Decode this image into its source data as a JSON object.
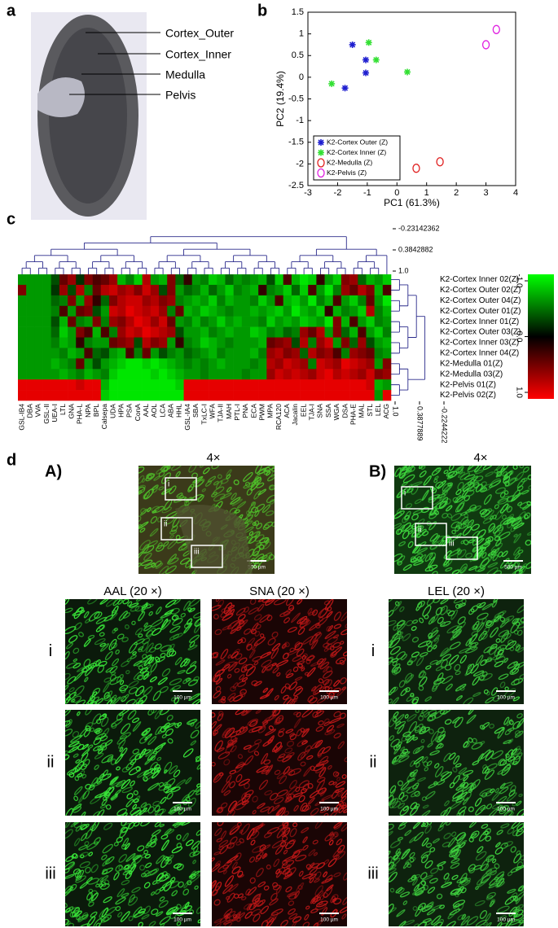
{
  "panel_labels": [
    "a",
    "b",
    "c",
    "d"
  ],
  "anatomy": {
    "labels": [
      "Cortex_Outer",
      "Cortex_Inner",
      "Medulla",
      "Pelvis"
    ]
  },
  "chart_data": {
    "type": "scatter",
    "xlabel": "PC1 (61.3%)",
    "ylabel": "PC2 (19.4%)",
    "xlim": [
      -3,
      4
    ],
    "xticks": [
      -3,
      -2,
      -1,
      0,
      1,
      2,
      3,
      4
    ],
    "ylim": [
      -2.5,
      1.5
    ],
    "yticks": [
      -2.5,
      -2,
      -1.5,
      -1,
      -0.5,
      0,
      0.5,
      1,
      1.5
    ],
    "legend": "lower left",
    "series": [
      {
        "name": "K2-Cortex Outer (Z)",
        "color": "#1f1fd0",
        "marker": "star",
        "x": [
          -1.5,
          -1.05,
          -1.05,
          -1.75
        ],
        "values": [
          0.75,
          0.4,
          0.1,
          -0.25
        ]
      },
      {
        "name": "K2-Cortex Inner (Z)",
        "color": "#33e033",
        "marker": "star",
        "x": [
          -0.95,
          -0.7,
          -2.2,
          0.35
        ],
        "values": [
          0.8,
          0.4,
          -0.15,
          0.12
        ]
      },
      {
        "name": "K2-Medulla (Z)",
        "color": "#e02020",
        "marker": "circle",
        "x": [
          0.65,
          1.45
        ],
        "values": [
          -2.1,
          -1.95
        ]
      },
      {
        "name": "K2-Pelvis (Z)",
        "color": "#e020e0",
        "marker": "circle",
        "x": [
          3.0,
          3.35
        ],
        "values": [
          0.75,
          1.1
        ]
      }
    ]
  },
  "heatmap": {
    "columns": [
      "GSL-IB4",
      "DBA",
      "VVA",
      "GSL-II",
      "UEA-I",
      "LTL",
      "GNA",
      "PHA-L",
      "NPA",
      "BPL",
      "Calsepa",
      "UDA",
      "HPA",
      "PSA",
      "ConA",
      "AAL",
      "AOL",
      "LCA",
      "ABA",
      "HHL",
      "GSL-IA4",
      "SBA",
      "TxLC-I",
      "WFA",
      "TJA-II",
      "MAH",
      "PTL-I",
      "PNA",
      "ECA",
      "PWM",
      "MPA",
      "RCA120",
      "ACA",
      "Jacalin",
      "EEL",
      "TJA-I",
      "SNA",
      "SSA",
      "WGA",
      "DSA",
      "PHA-E",
      "MAL",
      "STL",
      "LEL",
      "ACG"
    ],
    "rows": [
      "K2-Cortex Inner 02(Z)",
      "K2-Cortex Outer 02(Z)",
      "K2-Cortex Outer 04(Z)",
      "K2-Cortex Outer 01(Z)",
      "K2-Cortex Inner 01(Z)",
      "K2-Cortex Outer 03(Z)",
      "K2-Cortex Inner 03(Z)",
      "K2-Cortex Inner 04(Z)",
      "K2-Medulla 01(Z)",
      "K2-Medulla 03(Z)",
      "K2-Pelvis 01(Z)",
      "K2-Pelvis 02(Z)"
    ],
    "values": [
      [
        -0.6,
        -0.6,
        -0.6,
        -0.6,
        -0.3,
        0.4,
        0.6,
        -0.2,
        0.5,
        0.3,
        0.4,
        0.6,
        -0.7,
        -0.5,
        -0.8,
        0.7,
        -0.6,
        -0.7,
        0.5,
        -0.4,
        0.2,
        -0.6,
        -0.5,
        -0.8,
        -0.7,
        -0.4,
        -0.6,
        -0.5,
        -0.6,
        -0.7,
        -0.3,
        -0.8,
        0.3,
        -0.7,
        -0.9,
        -0.8,
        0.2,
        -0.6,
        -0.8,
        0.5,
        0.6,
        -0.4,
        -0.7,
        -0.6,
        -0.8
      ],
      [
        0.5,
        -0.6,
        -0.6,
        -0.6,
        -0.2,
        0.6,
        -0.3,
        0.7,
        -0.5,
        0.4,
        0.7,
        0.8,
        0.6,
        0.7,
        0.5,
        0.8,
        0.6,
        -0.3,
        0.5,
        -0.6,
        -0.4,
        -0.5,
        -0.7,
        -0.4,
        -0.6,
        -0.8,
        -0.5,
        -0.6,
        -0.7,
        0.2,
        -0.5,
        -0.6,
        -0.8,
        -0.4,
        -0.8,
        0.3,
        -0.6,
        -0.9,
        -0.5,
        0.6,
        0.4,
        0.7,
        0.5,
        -0.7,
        0.3
      ],
      [
        -0.6,
        -0.6,
        -0.6,
        -0.6,
        -0.4,
        -0.5,
        0.5,
        -0.6,
        0.6,
        0.2,
        -0.4,
        0.5,
        0.7,
        0.8,
        0.8,
        0.6,
        0.7,
        0.5,
        0.6,
        -0.5,
        -0.6,
        -0.7,
        -0.6,
        -0.8,
        -0.5,
        -0.7,
        -0.6,
        -0.6,
        -0.5,
        -0.8,
        -0.6,
        0.3,
        -0.7,
        -0.8,
        -0.6,
        -0.9,
        -0.5,
        -0.7,
        0.3,
        -0.6,
        -0.8,
        -0.5,
        0.4,
        -0.6,
        -0.9
      ],
      [
        -0.6,
        -0.6,
        -0.6,
        -0.6,
        -0.5,
        0.3,
        -0.6,
        0.4,
        0.5,
        -0.3,
        -0.6,
        0.8,
        0.7,
        0.9,
        0.8,
        0.7,
        0.8,
        0.6,
        -0.5,
        0.4,
        -0.7,
        -0.6,
        -0.8,
        -0.7,
        -0.6,
        -0.5,
        -0.6,
        -0.6,
        -0.7,
        -0.6,
        -0.7,
        -0.8,
        -0.6,
        -0.9,
        -0.7,
        -0.6,
        -0.8,
        0.2,
        -0.7,
        -0.5,
        -0.6,
        -0.8,
        0.7,
        -0.5,
        -0.7
      ],
      [
        -0.6,
        -0.6,
        -0.6,
        -0.6,
        -0.3,
        -0.7,
        0.4,
        -0.5,
        -0.6,
        0.5,
        -0.5,
        0.6,
        0.5,
        0.7,
        0.9,
        0.8,
        0.6,
        0.8,
        0.4,
        -0.6,
        -0.5,
        -0.7,
        -0.5,
        -0.6,
        -0.8,
        -0.6,
        -0.7,
        -0.6,
        -0.6,
        -0.5,
        -0.8,
        -0.6,
        -0.7,
        -0.6,
        -0.8,
        -0.7,
        -0.6,
        -0.9,
        0.5,
        -0.7,
        0.3,
        -0.6,
        -0.8,
        -0.5,
        -0.6
      ],
      [
        -0.6,
        -0.6,
        -0.6,
        -0.6,
        -0.4,
        -0.8,
        -0.6,
        0.5,
        0.3,
        -0.7,
        0.3,
        -0.5,
        0.6,
        0.8,
        0.7,
        0.9,
        0.8,
        0.7,
        0.6,
        -0.3,
        -0.6,
        -0.6,
        -0.7,
        -0.5,
        -0.6,
        -0.7,
        -0.6,
        -0.6,
        -0.8,
        -0.7,
        -0.5,
        -0.6,
        -0.4,
        -0.5,
        0.6,
        0.4,
        0.7,
        -0.6,
        0.5,
        -0.4,
        -0.7,
        0.3,
        -0.6,
        -0.8,
        -0.5
      ],
      [
        -0.6,
        -0.6,
        -0.6,
        -0.6,
        -0.5,
        -0.7,
        -0.6,
        0.2,
        -0.5,
        -0.6,
        -0.6,
        0.4,
        0.5,
        0.6,
        -0.3,
        0.7,
        0.5,
        0.6,
        -0.6,
        0.2,
        -0.5,
        -0.6,
        -0.8,
        -0.7,
        -0.6,
        -0.5,
        -0.6,
        -0.6,
        -0.6,
        -0.7,
        0.4,
        0.5,
        0.6,
        -0.3,
        0.7,
        -0.5,
        0.6,
        0.8,
        -0.6,
        0.5,
        -0.4,
        0.6,
        -0.3,
        -0.6,
        -0.7
      ],
      [
        -0.6,
        -0.6,
        -0.6,
        -0.6,
        -0.6,
        -0.5,
        -0.7,
        -0.6,
        0.3,
        -0.4,
        -0.3,
        -0.6,
        -0.7,
        0.3,
        -0.5,
        0.4,
        -0.6,
        -0.3,
        -0.5,
        -0.6,
        -0.4,
        -0.5,
        -0.6,
        -0.7,
        -0.5,
        -0.6,
        -0.6,
        -0.6,
        -0.7,
        -0.5,
        0.6,
        0.7,
        0.5,
        0.6,
        -0.4,
        0.7,
        0.5,
        0.6,
        0.3,
        -0.5,
        0.6,
        0.5,
        0.4,
        -0.5,
        -0.6
      ],
      [
        -0.6,
        -0.6,
        -0.6,
        -0.6,
        -0.7,
        -0.6,
        -0.5,
        0.4,
        -0.6,
        -0.3,
        -0.6,
        -0.7,
        -0.8,
        -0.9,
        -0.9,
        -0.8,
        -0.9,
        -0.8,
        -0.7,
        -0.6,
        -0.5,
        -0.6,
        -0.5,
        -0.6,
        -0.7,
        -0.6,
        -0.6,
        -0.6,
        -0.5,
        -0.6,
        0.7,
        0.6,
        0.8,
        0.7,
        0.6,
        -0.5,
        0.8,
        0.7,
        0.6,
        0.9,
        0.8,
        0.7,
        0.6,
        -0.6,
        0.5
      ],
      [
        -0.6,
        -0.6,
        -0.6,
        -0.6,
        -0.6,
        -0.7,
        -0.6,
        -0.5,
        -0.7,
        -0.6,
        -0.5,
        -0.8,
        -0.9,
        -0.9,
        -0.9,
        -0.9,
        -0.8,
        -0.9,
        -0.8,
        -0.7,
        -0.6,
        -0.6,
        -0.5,
        -0.6,
        -0.6,
        -0.6,
        -0.6,
        -0.5,
        -0.6,
        -0.6,
        0.6,
        0.8,
        0.7,
        0.8,
        0.7,
        0.6,
        0.8,
        0.9,
        0.7,
        0.8,
        0.7,
        0.6,
        0.8,
        0.5,
        0.6
      ],
      [
        0.9,
        0.9,
        0.9,
        0.9,
        0.9,
        0.9,
        0.9,
        0.8,
        0.9,
        0.9,
        -0.7,
        -0.9,
        -0.9,
        -0.9,
        -0.9,
        -0.9,
        -0.9,
        -0.9,
        -0.9,
        -0.8,
        0.9,
        0.9,
        0.9,
        0.9,
        0.9,
        0.9,
        0.9,
        0.9,
        0.9,
        0.9,
        0.9,
        0.9,
        0.9,
        0.9,
        0.9,
        0.9,
        0.9,
        0.9,
        0.9,
        0.9,
        0.9,
        0.9,
        0.8,
        -0.7,
        -0.6
      ],
      [
        0.9,
        0.9,
        0.9,
        0.9,
        0.9,
        0.9,
        0.9,
        0.9,
        0.9,
        0.9,
        -0.8,
        -0.9,
        -0.9,
        -0.9,
        -0.9,
        -0.9,
        -0.9,
        -0.9,
        -0.9,
        -0.9,
        0.9,
        0.9,
        0.9,
        0.9,
        0.9,
        0.9,
        0.9,
        0.9,
        0.9,
        0.9,
        0.9,
        0.9,
        0.9,
        0.9,
        0.9,
        0.9,
        0.9,
        0.9,
        0.9,
        0.9,
        0.9,
        0.9,
        0.9,
        -0.6,
        0.9
      ]
    ],
    "top_dendrogram_ticks": [
      -0.23142362,
      0.3842882,
      {
        "value": 1.0,
        "label": "1.0"
      }
    ],
    "side_dendrogram_ticks": [
      {
        "value": 1.0,
        "label": "1.0"
      },
      0.3877889,
      -0.2244222
    ],
    "color_scale": [
      {
        "value": -1.0,
        "label": "-1.0"
      },
      {
        "value": 0.0,
        "label": "0.0"
      },
      {
        "value": 1.0,
        "label": "1.0"
      }
    ]
  },
  "micrographs": {
    "group_labels": [
      "A)",
      "B)"
    ],
    "overview_label": "4×",
    "stains": [
      "AAL (20 ×)",
      "SNA (20 ×)",
      "LEL (20 ×)"
    ],
    "regions": [
      "i",
      "ii",
      "iii"
    ],
    "scale_overview": "500 µm",
    "scale_detail": "100 µm"
  }
}
